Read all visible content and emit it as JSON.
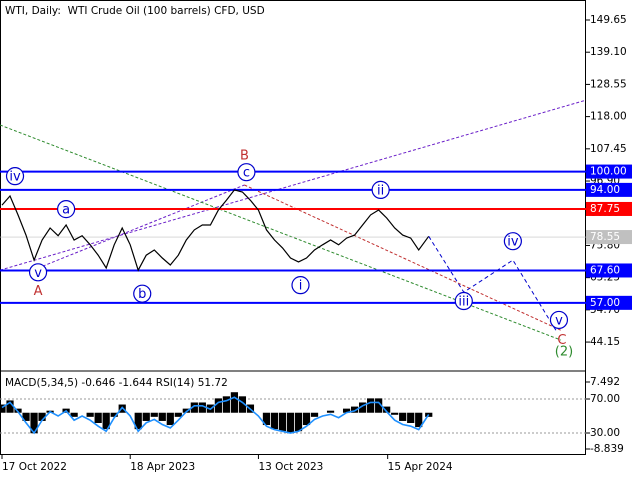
{
  "chart_data": [
    {
      "type": "line",
      "title": "WTI, Daily:  WTI Crude Oil (100 barrels) CFD, USD",
      "x": [
        0,
        8,
        16,
        24,
        32,
        40,
        48,
        56,
        64,
        72,
        80,
        88,
        96,
        104,
        112,
        120,
        128,
        136,
        144,
        152,
        160,
        168,
        176,
        184,
        192,
        200,
        208,
        216,
        224,
        232,
        240,
        248,
        256,
        264,
        272,
        280,
        288,
        296,
        304,
        312,
        320,
        328,
        336,
        344,
        352,
        360,
        368,
        376,
        384,
        392,
        400,
        408,
        416,
        426
      ],
      "xlim": [
        -2,
        583
      ],
      "xticks": [
        {
          "value": 0,
          "label": "17 Oct 2022"
        },
        {
          "value": 128,
          "label": "18 Apr 2023"
        },
        {
          "value": 256,
          "label": "13 Oct 2023"
        },
        {
          "value": 385,
          "label": "15 Apr 2024"
        }
      ],
      "ylim": [
        35,
        156.2
      ],
      "yticks": [
        149.65,
        {
          "value": 139.1,
          "label": "139.10"
        },
        128.55,
        {
          "value": 118,
          "label": "118.00"
        },
        107.45,
        {
          "value": 96.9,
          "label": "96.90"
        },
        86.35,
        {
          "value": 75.8,
          "label": "75.80"
        },
        65.25,
        {
          "value": 54.7,
          "label": "54.70"
        },
        44.15
      ],
      "series": [
        {
          "color": "#000000",
          "values": [
            89,
            92,
            85.8,
            79.2,
            71,
            77.6,
            81.5,
            79,
            82.5,
            77.6,
            79,
            76,
            72.6,
            68.4,
            76,
            81.5,
            76,
            67.7,
            72.6,
            74.3,
            71.7,
            69.4,
            72.6,
            77.6,
            80.9,
            82.5,
            82.5,
            87.4,
            90.6,
            94,
            93.3,
            90.6,
            87.4,
            80.9,
            77.6,
            75,
            71.7,
            70.4,
            71.7,
            74.3,
            76,
            77.6,
            76,
            78.2,
            79.2,
            82.5,
            85.8,
            87.4,
            84.8,
            81.5,
            79.2,
            78.2,
            74.3,
            78.8
          ]
        }
      ],
      "levels": [
        {
          "value": 100,
          "label": "100.00",
          "color": "#0000ff"
        },
        {
          "value": 94,
          "label": "94.00",
          "color": "#0000ff"
        },
        {
          "value": 87.75,
          "label": "87.75",
          "color": "#ff0000"
        },
        {
          "value": 67.6,
          "label": "67.60",
          "color": "#0000ff"
        },
        {
          "value": 57,
          "label": "57.00",
          "color": "#0000ff"
        }
      ],
      "current_price": {
        "value": 78.55,
        "label": "78.55",
        "color": "#c0c0c0"
      },
      "trendlines": [
        {
          "color": "#6a1fc9",
          "x": [
            -2,
            583
          ],
          "y": [
            67.7,
            123.4
          ]
        },
        {
          "color": "#6a1fc9",
          "x": [
            36,
            242
          ],
          "y": [
            68.4,
            95.6
          ]
        },
        {
          "color": "#c03030",
          "x": [
            242,
            558
          ],
          "y": [
            95.6,
            48
          ]
        },
        {
          "color": "#2e8b2e",
          "x": [
            -2,
            558
          ],
          "y": [
            115.25,
            44.8
          ]
        }
      ],
      "forecast": {
        "color": "#0000cc",
        "x": [
          426,
          461,
          510,
          553
        ],
        "y": [
          78.8,
          60.5,
          71,
          48
        ]
      },
      "wave_labels": [
        {
          "text": "iv",
          "x": 13,
          "y": 98.5,
          "color": "#0000cc",
          "circle": true
        },
        {
          "text": "a",
          "x": 64,
          "y": 87.7,
          "color": "#0000cc",
          "circle": true
        },
        {
          "text": "v",
          "x": 36,
          "y": 67,
          "color": "#0000cc",
          "circle": true
        },
        {
          "text": "A",
          "x": 36,
          "y": 61,
          "color": "#c03030",
          "circle": false
        },
        {
          "text": "b",
          "x": 140,
          "y": 60,
          "color": "#0000cc",
          "circle": true
        },
        {
          "text": "B",
          "x": 242,
          "y": 105.4,
          "color": "#c03030",
          "circle": false
        },
        {
          "text": "c",
          "x": 244,
          "y": 99.8,
          "color": "#0000cc",
          "circle": true
        },
        {
          "text": "ii",
          "x": 378,
          "y": 94,
          "color": "#0000cc",
          "circle": true
        },
        {
          "text": "i",
          "x": 298,
          "y": 62.8,
          "color": "#0000cc",
          "circle": true
        },
        {
          "text": "iv",
          "x": 510,
          "y": 77.2,
          "color": "#0000cc",
          "circle": true
        },
        {
          "text": "iii",
          "x": 461,
          "y": 57.6,
          "color": "#0000cc",
          "circle": true
        },
        {
          "text": "v",
          "x": 556,
          "y": 51.4,
          "color": "#0000cc",
          "circle": true
        },
        {
          "text": "C",
          "x": 559,
          "y": 45,
          "color": "#c03030",
          "circle": false
        },
        {
          "text": "(2)",
          "x": 561,
          "y": 41.2,
          "color": "#2e8b2e",
          "circle": false
        }
      ]
    },
    {
      "type": "macd-rsi",
      "title": "MACD(5,34,5) -0.646 -1.644 RSI(14) 51.72",
      "ylim": [
        4.1,
        99.4
      ],
      "yticks": [
        {
          "value": 70,
          "label": "70.00"
        },
        {
          "value": 30,
          "label": "30.00"
        }
      ],
      "y2lim": [
        -10.3,
        9.44
      ],
      "y2ticks": [
        7.492,
        -8.839
      ],
      "series": [
        {
          "axis": "y2",
          "color": "#000000",
          "values": [
            2,
            3,
            1,
            -2,
            -5,
            -2,
            0.5,
            0,
            1,
            -1,
            0,
            -1,
            -2.5,
            -4,
            -1,
            2,
            0,
            -4,
            -2,
            -1,
            -2,
            -3,
            -1,
            1,
            2.5,
            2.5,
            2,
            3.5,
            4,
            5,
            4,
            2,
            0,
            -3,
            -4,
            -4.5,
            -5,
            -4.5,
            -3,
            -1,
            0,
            0.5,
            0,
            1,
            1.5,
            2.5,
            3.5,
            3.5,
            1.5,
            -0.5,
            -2,
            -2.5,
            -3.5,
            -1
          ]
        },
        {
          "color": "#1e90ff",
          "values": [
            60,
            66,
            55,
            42,
            30,
            45,
            55,
            50,
            56,
            45,
            50,
            45,
            38,
            32,
            48,
            60,
            50,
            32,
            42,
            46,
            40,
            36,
            45,
            55,
            62,
            62,
            58,
            66,
            68,
            72,
            66,
            58,
            50,
            38,
            34,
            32,
            30,
            32,
            38,
            46,
            50,
            52,
            48,
            54,
            56,
            62,
            66,
            66,
            55,
            45,
            40,
            38,
            34,
            51.72
          ]
        }
      ]
    }
  ]
}
